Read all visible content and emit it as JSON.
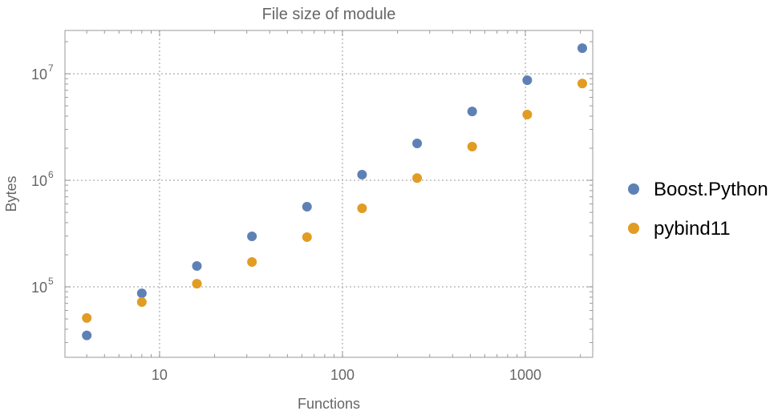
{
  "chart_data": {
    "type": "scatter",
    "title": "File size of module",
    "xlabel": "Functions",
    "ylabel": "Bytes",
    "xscale": "log",
    "yscale": "log",
    "xlim": [
      3.04,
      2335
    ],
    "ylim": [
      21800,
      25500000
    ],
    "grid": true,
    "legend_position": "right",
    "x_ticks": [
      {
        "value": 10,
        "label": "10"
      },
      {
        "value": 100,
        "label": "100"
      },
      {
        "value": 1000,
        "label": "1000"
      }
    ],
    "y_ticks": [
      {
        "value": 100000,
        "base": "10",
        "exp": "5"
      },
      {
        "value": 1000000,
        "base": "10",
        "exp": "6"
      },
      {
        "value": 10000000,
        "base": "10",
        "exp": "7"
      }
    ],
    "x": [
      4,
      8,
      16,
      32,
      64,
      128,
      256,
      512,
      1024,
      2048
    ],
    "series": [
      {
        "name": "Boost.Python",
        "color": "#5e81b5",
        "values": [
          35000,
          87000,
          157000,
          298000,
          565000,
          1130000,
          2220000,
          4430000,
          8700000,
          17400000
        ]
      },
      {
        "name": "pybind11",
        "color": "#e19c24",
        "values": [
          51000,
          72000,
          107000,
          171000,
          293000,
          546000,
          1050000,
          2070000,
          4140000,
          8100000
        ]
      }
    ]
  }
}
